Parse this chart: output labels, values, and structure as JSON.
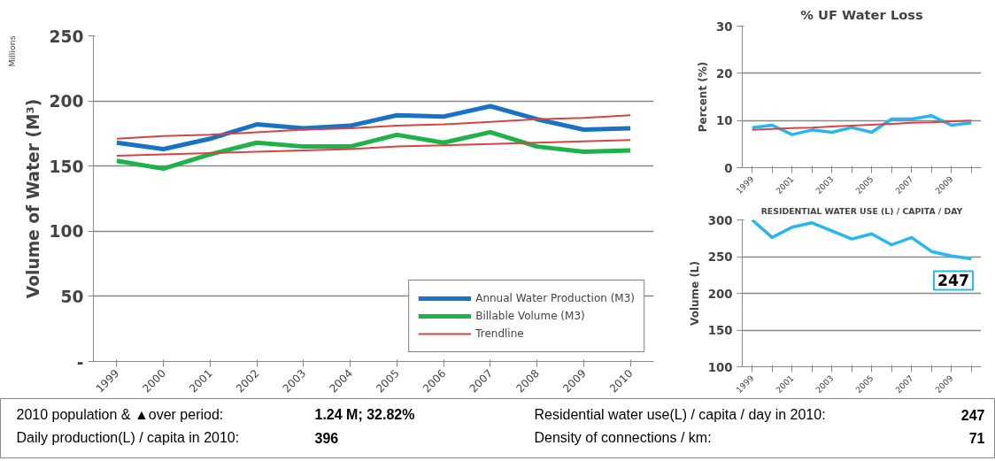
{
  "chart_data": [
    {
      "type": "line",
      "ylabel": "Volume of Water (M³)",
      "annotations": [
        "Millions"
      ],
      "categories": [
        "1999",
        "2000",
        "2001",
        "2002",
        "2003",
        "2004",
        "2005",
        "2006",
        "2007",
        "2008",
        "2009",
        "2010"
      ],
      "ylim": [
        0,
        250
      ],
      "yticks": [
        {
          "value": 0,
          "label": "-"
        },
        50,
        100,
        150,
        200,
        250
      ],
      "grid": "y",
      "legend": "bottom right",
      "series": [
        {
          "name": "Annual Water Production (M3)",
          "color": "#1a72c4",
          "values": [
            168,
            163,
            171,
            182,
            179,
            181,
            189,
            188,
            196,
            186,
            178,
            179
          ]
        },
        {
          "name": "Billable Volume (M3)",
          "color": "#1fb24a",
          "values": [
            154,
            148,
            159,
            168,
            165,
            165,
            174,
            168,
            176,
            165,
            161,
            162
          ]
        },
        {
          "name": "Trendline",
          "type": "line",
          "color": "#d64541",
          "values": [
            171,
            173,
            174,
            176,
            178,
            179,
            181,
            182,
            184,
            186,
            187,
            189
          ]
        },
        {
          "type": "line",
          "color": "#d64541",
          "values": [
            158,
            159,
            160,
            161,
            162,
            163,
            165,
            166,
            167,
            168,
            169,
            170
          ]
        }
      ]
    },
    {
      "type": "line",
      "title": "% UF Water Loss",
      "ylabel": "Percent (%)",
      "categories": [
        "1999",
        null,
        "2001",
        null,
        "2003",
        null,
        "2005",
        null,
        "2007",
        null,
        "2009",
        null
      ],
      "ylim": [
        0,
        30
      ],
      "yticks": [
        0,
        10,
        20,
        30
      ],
      "grid": "y",
      "series": [
        {
          "color": "#29b6f0",
          "values": [
            8.5,
            9,
            7,
            8,
            7.5,
            8.5,
            7.5,
            10.3,
            10.3,
            11,
            9,
            9.5
          ]
        },
        {
          "type": "line",
          "color": "#d64541",
          "values": [
            8,
            8.2,
            8.4,
            8.5,
            8.7,
            8.9,
            9.1,
            9.3,
            9.5,
            9.6,
            9.8,
            10
          ]
        }
      ]
    },
    {
      "type": "line",
      "title": "RESIDENTIAL WATER USE (L) / CAPITA / DAY",
      "ylabel": "Volume (L)",
      "categories": [
        "1999",
        null,
        "2001",
        null,
        "2003",
        null,
        "2005",
        null,
        "2007",
        null,
        "2009",
        null
      ],
      "ylim": [
        100,
        300
      ],
      "yticks": [
        100,
        150,
        200,
        250,
        300
      ],
      "grid": "y",
      "series": [
        {
          "color": "#29b6f0",
          "values": [
            300,
            276,
            290,
            296,
            285,
            274,
            281,
            266,
            276,
            257,
            251,
            247
          ],
          "value_labels": [
            null,
            null,
            null,
            null,
            null,
            null,
            null,
            null,
            null,
            null,
            null,
            "247"
          ]
        }
      ]
    },
    {
      "type": "other",
      "annotations": [
        "2010 population & ▲over period:",
        "1.24 M;  32.82%",
        "Residential water use(L) / capita / day in 2010:",
        "247",
        "Daily production(L) / capita in 2010:",
        "396",
        "Density of connections / km:",
        "71"
      ]
    }
  ]
}
